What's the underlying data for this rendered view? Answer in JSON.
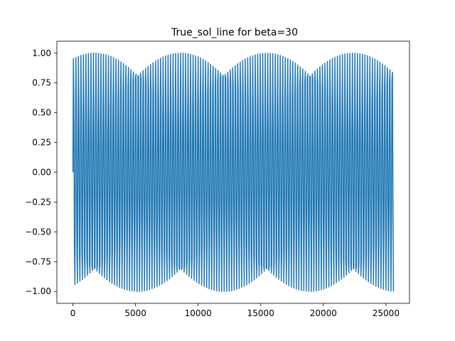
{
  "chart_data": {
    "type": "line",
    "title": "True_sol_line  for beta=30",
    "xlabel": "",
    "ylabel": "",
    "xlim": [
      -1280,
      26880
    ],
    "ylim": [
      -1.1,
      1.1
    ],
    "xticks": [
      0,
      5000,
      10000,
      15000,
      20000,
      25000
    ],
    "xtick_labels": [
      "0",
      "5000",
      "10000",
      "15000",
      "20000",
      "25000"
    ],
    "yticks": [
      -1.0,
      -0.75,
      -0.5,
      -0.25,
      0.0,
      0.25,
      0.5,
      0.75,
      1.0
    ],
    "ytick_labels": [
      "−1.00",
      "−0.75",
      "−0.50",
      "−0.25",
      "0.00",
      "0.25",
      "0.50",
      "0.75",
      "1.00"
    ],
    "grid": false,
    "series": [
      {
        "color": "#1f77b4",
        "function": "sin",
        "x_start": 0,
        "x_end": 25600,
        "cycles": 128,
        "samples_per_cycle": 5,
        "phase_shift_per_cycle": 0.73
      }
    ]
  }
}
